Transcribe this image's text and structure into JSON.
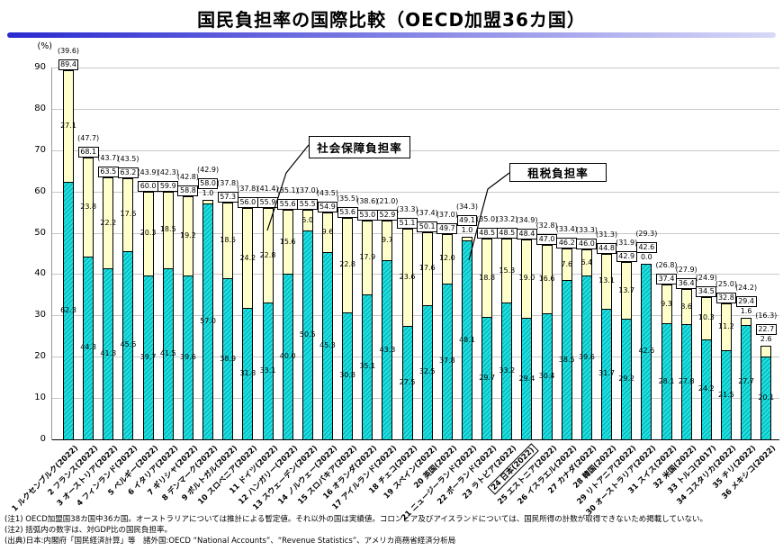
{
  "title": "国民負担率の国際比較（OECD加盟36カ国）",
  "y_axis": {
    "unit": "(%)",
    "ticks": [
      0,
      10,
      20,
      30,
      40,
      50,
      60,
      70,
      80,
      90
    ]
  },
  "legend_callouts": {
    "social": "社会保障負担率",
    "tax": "租税負担率"
  },
  "colors": {
    "tax_fill": "#1ae2e2",
    "social_fill": "#ffffcc",
    "rule_left": "#2a2ad0",
    "rule_right": "#d8d8f8",
    "gridline": "#c8c8c8"
  },
  "chart_data": {
    "type": "bar",
    "stacked": true,
    "ylim": [
      0,
      90
    ],
    "grid": true,
    "unit": "(%)",
    "series_names": {
      "tax_bottom_segment": "租税負担率",
      "social_top_segment": "社会保障負担率"
    },
    "note_on_parentheses": "括弧内の数字は、対GDP比の国民負担率",
    "countries": [
      {
        "label": "1 ルクセンブルク(2022)",
        "gdp_ratio": "(39.6)",
        "total": "89.4",
        "social": "27.1",
        "tax": "62.3",
        "boxed": false
      },
      {
        "label": "2 フランス(2022)",
        "gdp_ratio": "(47.7)",
        "total": "68.1",
        "social": "23.8",
        "tax": "44.3",
        "boxed": false
      },
      {
        "label": "3 オーストリア(2022)",
        "gdp_ratio": "(43.7)",
        "total": "63.5",
        "social": "22.2",
        "tax": "41.3",
        "boxed": false
      },
      {
        "label": "4 フィンランド(2022)",
        "gdp_ratio": "(43.5)",
        "total": "63.2",
        "social": "17.6",
        "tax": "45.6",
        "boxed": false
      },
      {
        "label": "5 ベルギー(2022)",
        "gdp_ratio": "(43.9)",
        "total": "60.0",
        "social": "20.3",
        "tax": "39.7",
        "boxed": false
      },
      {
        "label": "6 イタリア(2022)",
        "gdp_ratio": "(42.3)",
        "total": "59.9",
        "social": "18.5",
        "tax": "41.5",
        "boxed": false
      },
      {
        "label": "7 ギリシャ(2022)",
        "gdp_ratio": "(42.8)",
        "total": "58.8",
        "social": "19.2",
        "tax": "39.6",
        "boxed": false
      },
      {
        "label": "8 デンマーク(2022)",
        "gdp_ratio": "(42.9)",
        "total": "58.0",
        "social": "1.0",
        "tax": "57.0",
        "boxed": false
      },
      {
        "label": "9 ポルトガル(2022)",
        "gdp_ratio": "(37.8)",
        "total": "57.3",
        "social": "18.5",
        "tax": "38.9",
        "boxed": false
      },
      {
        "label": "10 スロベニア(2022)",
        "gdp_ratio": "(37.8)",
        "total": "56.0",
        "social": "24.2",
        "tax": "31.8",
        "boxed": false
      },
      {
        "label": "11 ドイツ(2022)",
        "gdp_ratio": "(41.4)",
        "total": "55.9",
        "social": "22.8",
        "tax": "33.1",
        "boxed": false
      },
      {
        "label": "12 ハンガリー(2022)",
        "gdp_ratio": "(35.1)",
        "total": "55.6",
        "social": "15.6",
        "tax": "40.0",
        "boxed": false
      },
      {
        "label": "13 スウェーデン(2022)",
        "gdp_ratio": "(37.0)",
        "total": "55.5",
        "social": "5.0",
        "tax": "50.5",
        "boxed": false
      },
      {
        "label": "14 ノルウェー(2022)",
        "gdp_ratio": "(43.5)",
        "total": "54.9",
        "social": "9.6",
        "tax": "45.3",
        "boxed": false
      },
      {
        "label": "15 スロバキア(2022)",
        "gdp_ratio": "(35.5)",
        "total": "53.6",
        "social": "22.8",
        "tax": "30.8",
        "boxed": false
      },
      {
        "label": "16 オランダ(2022)",
        "gdp_ratio": "(38.6)",
        "total": "53.0",
        "social": "17.9",
        "tax": "35.1",
        "boxed": false
      },
      {
        "label": "17 アイルランド(2022)",
        "gdp_ratio": "(21.0)",
        "total": "52.9",
        "social": "9.7",
        "tax": "43.3",
        "boxed": false
      },
      {
        "label": "18 チェコ(2022)",
        "gdp_ratio": "(33.3)",
        "total": "51.1",
        "social": "23.6",
        "tax": "27.5",
        "boxed": false
      },
      {
        "label": "19 スペイン(2022)",
        "gdp_ratio": "(37.4)",
        "total": "50.1",
        "social": "17.6",
        "tax": "32.5",
        "boxed": false
      },
      {
        "label": "20 英国(2022)",
        "gdp_ratio": "(37.0)",
        "total": "49.7",
        "social": "12.0",
        "tax": "37.8",
        "boxed": false
      },
      {
        "label": "21 ニュージーランド(2022)",
        "gdp_ratio": "(34.3)",
        "total": "49.1",
        "social": "1.0",
        "tax": "48.1",
        "boxed": false
      },
      {
        "label": "22 ポーランド(2022)",
        "gdp_ratio": "(35.0)",
        "total": "48.5",
        "social": "18.8",
        "tax": "29.7",
        "boxed": false
      },
      {
        "label": "23 ラトビア(2022)",
        "gdp_ratio": "(33.2)",
        "total": "48.5",
        "social": "15.3",
        "tax": "33.2",
        "boxed": false
      },
      {
        "label": "24 日本(2022)",
        "gdp_ratio": "(34.9)",
        "total": "48.4",
        "social": "19.0",
        "tax": "29.4",
        "boxed": true
      },
      {
        "label": "25 エストニア(2022)",
        "gdp_ratio": "(32.8)",
        "total": "47.0",
        "social": "16.6",
        "tax": "30.4",
        "boxed": false
      },
      {
        "label": "26 イスラエル(2022)",
        "gdp_ratio": "(33.4)",
        "total": "46.2",
        "social": "7.6",
        "tax": "38.5",
        "boxed": false
      },
      {
        "label": "27 カナダ(2022)",
        "gdp_ratio": "(33.3)",
        "total": "46.0",
        "social": "6.4",
        "tax": "39.6",
        "boxed": false
      },
      {
        "label": "28 韓国(2022)",
        "gdp_ratio": "(31.3)",
        "total": "44.8",
        "social": "13.1",
        "tax": "31.7",
        "boxed": false
      },
      {
        "label": "29 リトアニア(2022)",
        "gdp_ratio": "(31.9)",
        "total": "42.9",
        "social": "13.7",
        "tax": "29.2",
        "boxed": false
      },
      {
        "label": "30 オーストラリア(2022)",
        "gdp_ratio": "(29.3)",
        "total": "42.6",
        "social": "0.0",
        "tax": "42.6",
        "boxed": false
      },
      {
        "label": "31 スイス(2022)",
        "gdp_ratio": "(26.8)",
        "total": "37.4",
        "social": "9.3",
        "tax": "28.1",
        "boxed": false
      },
      {
        "label": "32 米国(2022)",
        "gdp_ratio": "(27.9)",
        "total": "36.4",
        "social": "8.6",
        "tax": "27.8",
        "boxed": false
      },
      {
        "label": "33 トルコ(2017)",
        "gdp_ratio": "(24.9)",
        "total": "34.5",
        "social": "10.3",
        "tax": "24.2",
        "boxed": false
      },
      {
        "label": "34 コスタリカ(2022)",
        "gdp_ratio": "(25.0)",
        "total": "32.8",
        "social": "11.2",
        "tax": "21.5",
        "boxed": false
      },
      {
        "label": "35 チリ(2022)",
        "gdp_ratio": "(24.2)",
        "total": "29.4",
        "social": "1.6",
        "tax": "27.7",
        "boxed": false
      },
      {
        "label": "36 メキシコ(2022)",
        "gdp_ratio": "(16.3)",
        "total": "22.7",
        "social": "2.6",
        "tax": "20.1",
        "boxed": false
      }
    ]
  },
  "notes": [
    "(注1) OECD加盟国38カ国中36カ国。オーストラリアについては推計による暫定値。それ以外の国は実績値。コロンビア及びアイスランドについては、国民所得の計数が取得できないため掲載していない。",
    "(注2) 括弧内の数字は、対GDP比の国民負担率。",
    "(出典)日本:内閣府「国民経済計算」等　諸外国:OECD “National Accounts”、“Revenue Statistics”、アメリカ商務省経済分析局"
  ]
}
